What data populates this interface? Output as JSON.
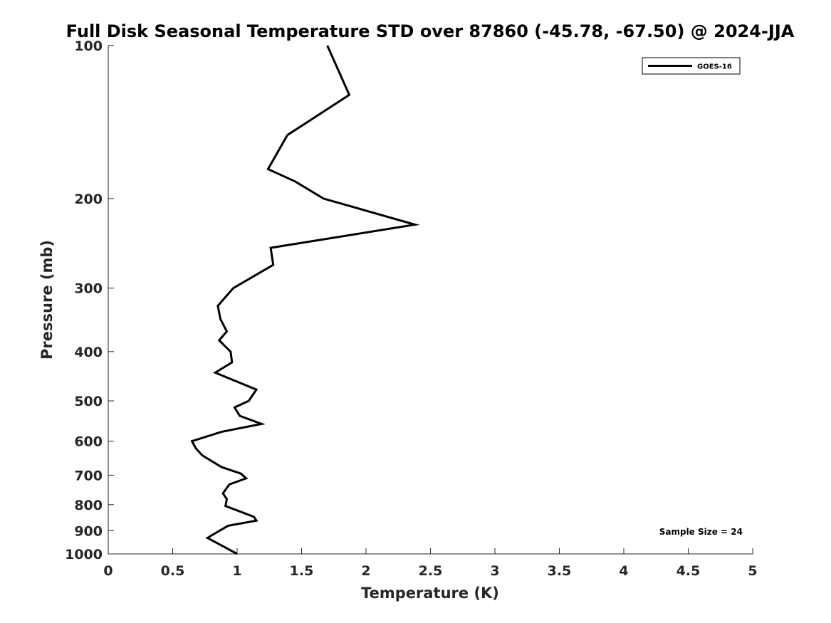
{
  "chart_data": {
    "type": "line",
    "title": "Full Disk Seasonal Temperature STD over 87860 (-45.78, -67.50) @ 2024-JJA",
    "xlabel": "Temperature (K)",
    "ylabel": "Pressure (mb)",
    "xlim": [
      0,
      5
    ],
    "ylim": [
      100,
      1000
    ],
    "y_scale": "log",
    "y_reversed": true,
    "grid": false,
    "legend_position": "top-right",
    "x_ticks": [
      0,
      0.5,
      1,
      1.5,
      2,
      2.5,
      3,
      3.5,
      4,
      4.5,
      5
    ],
    "x_tick_labels": [
      "0",
      "0.5",
      "1",
      "1.5",
      "2",
      "2.5",
      "3",
      "3.5",
      "4",
      "4.5",
      "5"
    ],
    "y_ticks": [
      100,
      200,
      300,
      400,
      500,
      600,
      700,
      800,
      900,
      1000
    ],
    "y_tick_labels": [
      "100",
      "200",
      "300",
      "400",
      "500",
      "600",
      "700",
      "800",
      "900",
      "1000"
    ],
    "series": [
      {
        "name": "GOES-16",
        "color": "#000000",
        "points": [
          {
            "x": 1.7,
            "y": 100
          },
          {
            "x": 1.87,
            "y": 125
          },
          {
            "x": 1.39,
            "y": 150
          },
          {
            "x": 1.24,
            "y": 175
          },
          {
            "x": 1.45,
            "y": 185
          },
          {
            "x": 1.67,
            "y": 200
          },
          {
            "x": 2.38,
            "y": 225
          },
          {
            "x": 1.26,
            "y": 250
          },
          {
            "x": 1.28,
            "y": 270
          },
          {
            "x": 0.97,
            "y": 300
          },
          {
            "x": 0.85,
            "y": 325
          },
          {
            "x": 0.87,
            "y": 345
          },
          {
            "x": 0.92,
            "y": 365
          },
          {
            "x": 0.86,
            "y": 380
          },
          {
            "x": 0.95,
            "y": 400
          },
          {
            "x": 0.96,
            "y": 420
          },
          {
            "x": 0.83,
            "y": 440
          },
          {
            "x": 1.15,
            "y": 475
          },
          {
            "x": 1.09,
            "y": 500
          },
          {
            "x": 0.98,
            "y": 515
          },
          {
            "x": 1.02,
            "y": 535
          },
          {
            "x": 1.19,
            "y": 555
          },
          {
            "x": 0.88,
            "y": 575
          },
          {
            "x": 0.65,
            "y": 600
          },
          {
            "x": 0.68,
            "y": 620
          },
          {
            "x": 0.73,
            "y": 640
          },
          {
            "x": 0.88,
            "y": 675
          },
          {
            "x": 1.03,
            "y": 695
          },
          {
            "x": 1.07,
            "y": 710
          },
          {
            "x": 0.94,
            "y": 730
          },
          {
            "x": 0.89,
            "y": 760
          },
          {
            "x": 0.92,
            "y": 780
          },
          {
            "x": 0.91,
            "y": 805
          },
          {
            "x": 1.13,
            "y": 845
          },
          {
            "x": 1.15,
            "y": 860
          },
          {
            "x": 0.93,
            "y": 880
          },
          {
            "x": 0.8,
            "y": 920
          },
          {
            "x": 0.77,
            "y": 930
          },
          {
            "x": 0.92,
            "y": 975
          },
          {
            "x": 1.0,
            "y": 1000
          }
        ]
      }
    ],
    "annotations": [
      {
        "text": "Sample Size = 24",
        "position": "bottom-right"
      }
    ]
  }
}
